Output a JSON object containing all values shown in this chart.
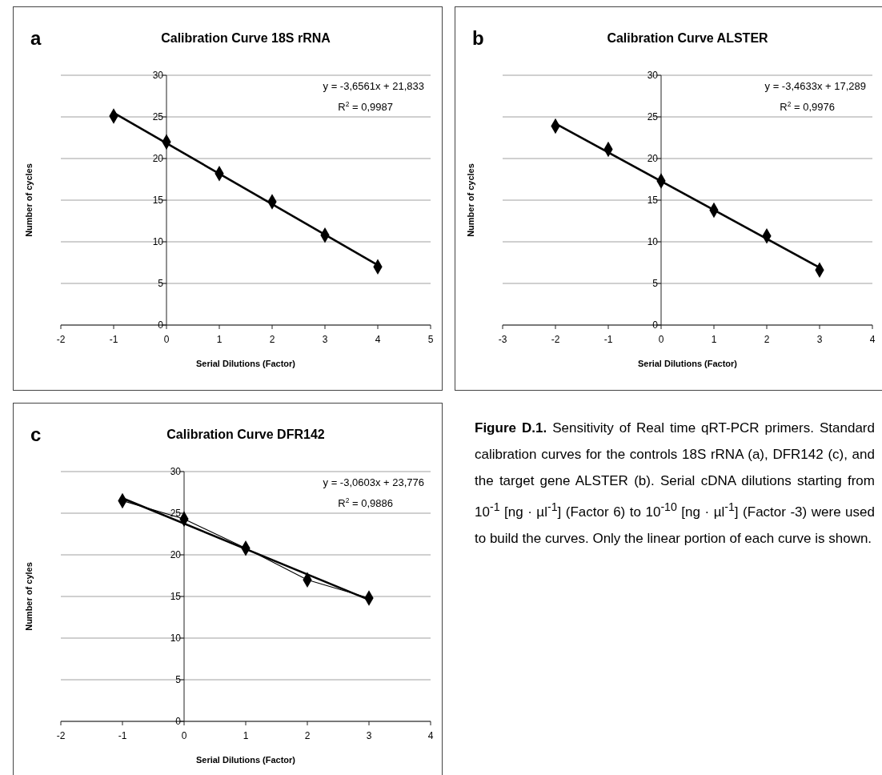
{
  "chart_data": [
    {
      "type": "scatter",
      "title": "Calibration Curve 18S rRNA",
      "xlabel": "Serial Dilutions (Factor)",
      "ylabel": "Number of cycles",
      "annotations": [
        "a",
        "y = -3,6561x + 21,833",
        "R$^{2}$ = 0,9987"
      ],
      "x": [
        -1,
        0,
        1,
        2,
        3,
        4
      ],
      "marker": "diamond",
      "grid": "y",
      "xlim": [
        -2,
        5
      ],
      "ylim": [
        0,
        30
      ],
      "xticks": [
        -2,
        -1,
        0,
        1,
        2,
        3,
        4,
        5
      ],
      "yticks": [
        0,
        5,
        10,
        15,
        20,
        25,
        30
      ],
      "series": [
        {
          "type": "scatter",
          "color": "#000000",
          "values": [
            25.1,
            22.0,
            18.2,
            14.8,
            10.8,
            7.0
          ]
        },
        {
          "type": "line",
          "color": "#000000",
          "x": [
            -1,
            4
          ],
          "values": [
            25.5,
            7.2
          ],
          "marker": "none"
        }
      ]
    },
    {
      "type": "scatter",
      "title": "Calibration Curve ALSTER",
      "xlabel": "Serial Dilutions (Factor)",
      "ylabel": "Number of cycles",
      "annotations": [
        "b",
        "y = -3,4633x + 17,289",
        "R$^{2}$ = 0,9976"
      ],
      "x": [
        -2,
        -1,
        0,
        1,
        2,
        3
      ],
      "marker": "diamond",
      "grid": "y",
      "xlim": [
        -3,
        4
      ],
      "ylim": [
        0,
        30
      ],
      "xticks": [
        -3,
        -2,
        -1,
        0,
        1,
        2,
        3,
        4
      ],
      "yticks": [
        0,
        5,
        10,
        15,
        20,
        25,
        30
      ],
      "series": [
        {
          "type": "scatter",
          "color": "#000000",
          "values": [
            23.9,
            21.1,
            17.3,
            13.8,
            10.7,
            6.6
          ]
        },
        {
          "type": "line",
          "color": "#000000",
          "x": [
            -2,
            3
          ],
          "values": [
            24.2,
            6.9
          ],
          "marker": "none"
        }
      ]
    },
    {
      "type": "line",
      "title": "Calibration Curve DFR142",
      "xlabel": "Serial Dilutions (Factor)",
      "ylabel": "Number of cyles",
      "annotations": [
        "c",
        "y = -3,0603x + 23,776",
        "R$^{2}$ = 0,9886"
      ],
      "x": [
        -1,
        0,
        1,
        2,
        3
      ],
      "marker": "diamond",
      "grid": "y",
      "xlim": [
        -2,
        4
      ],
      "ylim": [
        0,
        30
      ],
      "xticks": [
        -2,
        -1,
        0,
        1,
        2,
        3,
        4
      ],
      "yticks": [
        0,
        5,
        10,
        15,
        20,
        25,
        30
      ],
      "series": [
        {
          "type": "line",
          "color": "#000000",
          "values": [
            26.5,
            24.3,
            20.8,
            17.0,
            14.8
          ]
        },
        {
          "type": "line",
          "color": "#000000",
          "x": [
            -1,
            3
          ],
          "values": [
            26.8,
            14.6
          ],
          "marker": "none"
        }
      ]
    },
    {
      "type": "other",
      "annotations": [
        "Figure D.1.",
        "Sensitivity of Real time qRT-PCR primers. Standard calibration curves for the controls 18S rRNA (a), DFR142 (c), and the target gene ALSTER (b). Serial cDNA dilutions starting from 10$^{-1}$ [ng · µl$^{-1}$] (Factor 6) to 10$^{-10}$ [ng · µl$^{-1}$] (Factor -3) were used to build the curves.  Only the linear portion of each curve is shown."
      ]
    }
  ]
}
